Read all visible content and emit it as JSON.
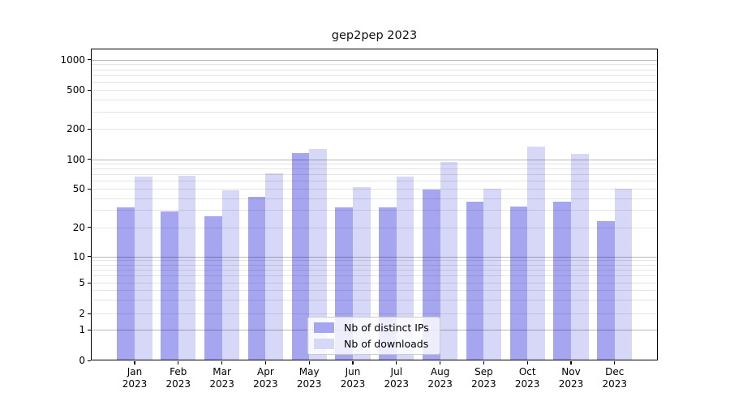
{
  "chart_data": {
    "type": "bar",
    "title": "gep2pep 2023",
    "x_tick_months": [
      "Jan",
      "Feb",
      "Mar",
      "Apr",
      "May",
      "Jun",
      "Jul",
      "Aug",
      "Sep",
      "Oct",
      "Nov",
      "Dec"
    ],
    "x_tick_year": "2023",
    "y_ticks": [
      0,
      1,
      2,
      5,
      10,
      20,
      50,
      100,
      200,
      500,
      1000
    ],
    "y_scale": "symlog",
    "ylim": [
      0,
      1000
    ],
    "grid": true,
    "legend_position": "lower center",
    "series": [
      {
        "name": "Nb of distinct IPs",
        "color": "#a5a5f0",
        "values": [
          32,
          29,
          26,
          41,
          114,
          32,
          32,
          49,
          37,
          33,
          37,
          23
        ]
      },
      {
        "name": "Nb of downloads",
        "color": "#d7d7f7",
        "values": [
          67,
          68,
          48,
          72,
          126,
          52,
          67,
          94,
          50,
          132,
          113,
          50
        ]
      }
    ]
  }
}
